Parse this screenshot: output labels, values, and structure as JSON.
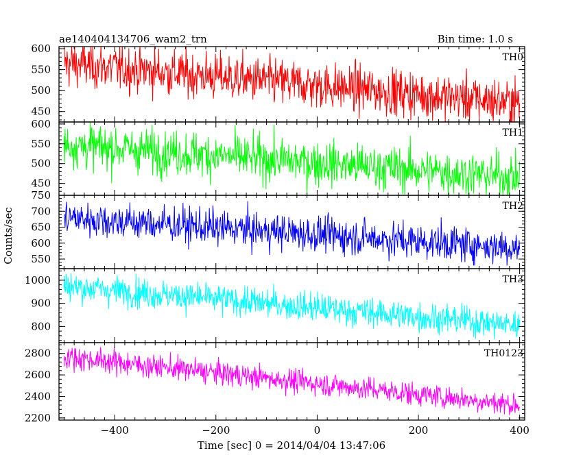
{
  "header": {
    "title_left": "ae140404134706_wam2_trn",
    "title_right": "Bin time: 1.0 s"
  },
  "chart_data": {
    "type": "line",
    "xlabel": "Time [sec] 0 = 2014/04/04 13:47:06",
    "ylabel": "Counts/sec",
    "xlim": [
      -510,
      410
    ],
    "x_ticks": [
      -400,
      -200,
      0,
      200,
      400
    ],
    "x_step": 1.0,
    "panels": [
      {
        "name": "TH0",
        "color": "#ff0000",
        "ylim": [
          425,
          605
        ],
        "y_ticks": [
          450,
          500,
          550,
          600
        ],
        "x": [
          -500,
          400
        ],
        "trend": [
          565,
          470
        ],
        "noise": 28,
        "min_value": 405,
        "max_value": 610
      },
      {
        "name": "TH1",
        "color": "#00ff00",
        "ylim": [
          420,
          605
        ],
        "y_ticks": [
          450,
          500,
          550,
          600
        ],
        "x": [
          -500,
          400
        ],
        "trend": [
          548,
          465
        ],
        "noise": 28,
        "min_value": 420,
        "max_value": 605
      },
      {
        "name": "TH2",
        "color": "#0000ff",
        "ylim": [
          520,
          750
        ],
        "y_ticks": [
          550,
          600,
          650,
          700,
          750
        ],
        "x": [
          -500,
          400
        ],
        "trend": [
          680,
          585
        ],
        "noise": 28,
        "min_value": 530,
        "max_value": 755
      },
      {
        "name": "TH3",
        "color": "#00ffff",
        "ylim": [
          730,
          1050
        ],
        "y_ticks": [
          800,
          900,
          1000
        ],
        "x": [
          -500,
          400
        ],
        "trend": [
          975,
          805
        ],
        "noise": 32,
        "min_value": 745,
        "max_value": 1045
      },
      {
        "name": "TH0123",
        "color": "#ff00ff",
        "ylim": [
          2180,
          2900
        ],
        "y_ticks": [
          2200,
          2400,
          2600,
          2800
        ],
        "x": [
          -500,
          400
        ],
        "trend": [
          2770,
          2320
        ],
        "noise": 55,
        "min_value": 2180,
        "max_value": 2900
      }
    ]
  }
}
